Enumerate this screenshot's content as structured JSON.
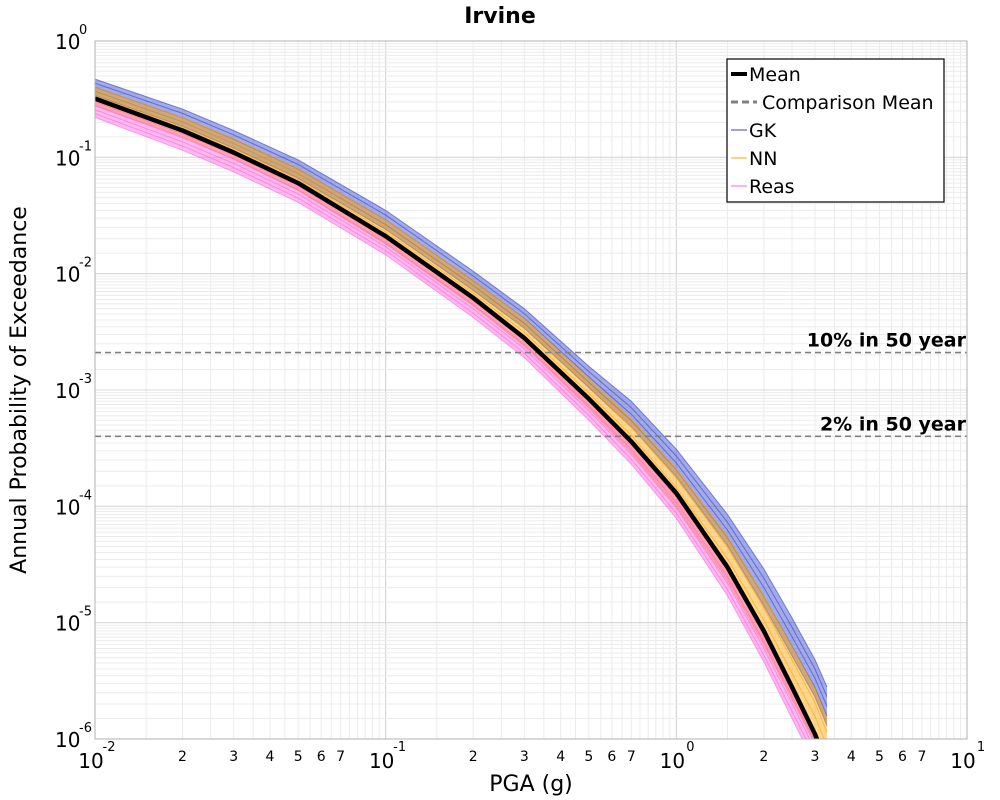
{
  "chart_data": {
    "type": "line",
    "title": "Irvine",
    "xlabel": "PGA (g)",
    "ylabel": "Annual Probability of Exceedance",
    "x_scale": "log",
    "y_scale": "log",
    "xlim": [
      0.01,
      10
    ],
    "ylim": [
      1e-06,
      1
    ],
    "grid": true,
    "legend_position": "top-right",
    "x_major_ticks": [
      {
        "value": 0.01,
        "base": "10",
        "exp": "-2"
      },
      {
        "value": 0.1,
        "base": "10",
        "exp": "-1"
      },
      {
        "value": 1,
        "base": "10",
        "exp": "0"
      },
      {
        "value": 10,
        "base": "10",
        "exp": "1"
      }
    ],
    "x_minor_tick_labels": [
      "2",
      "3",
      "4",
      "5",
      "6",
      "7"
    ],
    "y_major_ticks": [
      {
        "value": 1,
        "base": "10",
        "exp": "0"
      },
      {
        "value": 0.1,
        "base": "10",
        "exp": "-1"
      },
      {
        "value": 0.01,
        "base": "10",
        "exp": "-2"
      },
      {
        "value": 0.001,
        "base": "10",
        "exp": "-3"
      },
      {
        "value": 0.0001,
        "base": "10",
        "exp": "-4"
      },
      {
        "value": 1e-05,
        "base": "10",
        "exp": "-5"
      },
      {
        "value": 1e-06,
        "base": "10",
        "exp": "-6"
      }
    ],
    "reference_lines": [
      {
        "label": "10% in 50 year",
        "y": 0.0021,
        "color": "#808080"
      },
      {
        "label": "2% in 50 year",
        "y": 0.0004,
        "color": "#808080"
      }
    ],
    "x": [
      0.01,
      0.02,
      0.03,
      0.05,
      0.1,
      0.2,
      0.3,
      0.5,
      0.7,
      1,
      1.5,
      2,
      2.5,
      3,
      3.3
    ],
    "series": [
      {
        "name": "Mean",
        "color": "#000000",
        "style": "solid",
        "values": [
          0.32,
          0.17,
          0.11,
          0.06,
          0.021,
          0.0062,
          0.0028,
          0.00084,
          0.00036,
          0.00013,
          3e-05,
          8.5e-06,
          2.8e-06,
          1.1e-06,
          6e-07
        ]
      },
      {
        "name": "GK",
        "color": "#3344cc",
        "style": "band",
        "values_low": [
          0.34,
          0.185,
          0.12,
          0.066,
          0.024,
          0.0072,
          0.0034,
          0.00105,
          0.00048,
          0.00018,
          4.6e-05,
          1.4e-05,
          5.2e-06,
          2.3e-06,
          1.3e-06
        ],
        "values_high": [
          0.47,
          0.26,
          0.17,
          0.095,
          0.035,
          0.0105,
          0.005,
          0.0016,
          0.0008,
          0.00031,
          8.5e-05,
          2.9e-05,
          1.1e-05,
          4.8e-06,
          2.8e-06
        ]
      },
      {
        "name": "NN",
        "color": "#ffa500",
        "style": "band",
        "values_low": [
          0.28,
          0.15,
          0.097,
          0.052,
          0.018,
          0.0053,
          0.0024,
          0.0007,
          0.00029,
          0.0001,
          2.3e-05,
          6.5e-06,
          2.2e-06,
          9e-07,
          5e-07
        ],
        "values_high": [
          0.4,
          0.22,
          0.145,
          0.08,
          0.029,
          0.0088,
          0.0041,
          0.00126,
          0.00057,
          0.00021,
          5.5e-05,
          1.7e-05,
          6.2e-06,
          2.7e-06,
          1.5e-06
        ]
      },
      {
        "name": "Reas",
        "color": "#ff66dd",
        "style": "band",
        "values_low": [
          0.22,
          0.115,
          0.075,
          0.041,
          0.0145,
          0.0042,
          0.0019,
          0.00055,
          0.00023,
          7.9e-05,
          1.7e-05,
          4.6e-06,
          1.5e-06,
          6e-07,
          3e-07
        ],
        "values_high": [
          0.3,
          0.16,
          0.105,
          0.057,
          0.02,
          0.0059,
          0.0027,
          0.0008,
          0.00034,
          0.00012,
          2.8e-05,
          7.9e-06,
          2.7e-06,
          1.1e-06,
          6e-07
        ]
      }
    ],
    "legend": [
      {
        "label": "Mean",
        "color": "#000000",
        "style": "solid-thick"
      },
      {
        "label": "Comparison Mean",
        "color": "#808080",
        "style": "dashed"
      },
      {
        "label": "GK",
        "color": "#3344cc",
        "style": "thin"
      },
      {
        "label": "NN",
        "color": "#ffa500",
        "style": "thin"
      },
      {
        "label": "Reas",
        "color": "#ff66dd",
        "style": "thin"
      }
    ]
  }
}
